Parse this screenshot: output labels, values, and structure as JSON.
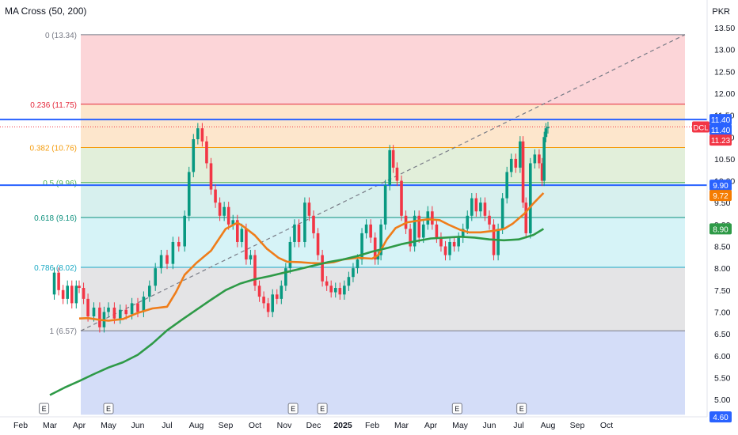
{
  "indicator": {
    "title": "MA Cross (50, 200)"
  },
  "currency": "PKR",
  "chart_data": {
    "type": "line",
    "price_axis": {
      "ticks": [
        "13.50",
        "13.00",
        "12.50",
        "12.00",
        "11.50",
        "11.00",
        "10.50",
        "10.00",
        "9.50",
        "9.00",
        "8.50",
        "8.00",
        "7.50",
        "7.00",
        "6.50",
        "6.00",
        "5.50",
        "5.00"
      ],
      "range": [
        4.6,
        13.6
      ]
    },
    "time_axis": {
      "ticks": [
        "Feb",
        "Mar",
        "Apr",
        "May",
        "Jun",
        "Jul",
        "Aug",
        "Sep",
        "Oct",
        "Nov",
        "Dec",
        "2025",
        "Feb",
        "Mar",
        "Apr",
        "May",
        "Jun",
        "Jul",
        "Aug",
        "Sep",
        "Oct"
      ]
    },
    "fib_levels": [
      {
        "label": "0 (13.34)",
        "value": 13.34,
        "line": "#787b86",
        "fill": "#fcd5d8"
      },
      {
        "label": "0.236 (11.75)",
        "value": 11.75,
        "line": "#e4273a",
        "fill": "#fde6cc"
      },
      {
        "label": "0.382 (10.76)",
        "value": 10.76,
        "line": "#f59d0f",
        "fill": "#e2efda"
      },
      {
        "label": "0.5 (9.96)",
        "value": 9.96,
        "line": "#4caf50",
        "fill": "#d7f0ee"
      },
      {
        "label": "0.618 (9.16)",
        "value": 9.16,
        "line": "#0b8f7c",
        "fill": "#d6f3f7"
      },
      {
        "label": "0.786 (8.02)",
        "value": 8.02,
        "line": "#1ba9c4",
        "fill": "#e4e4e6"
      },
      {
        "label": "1 (6.57)",
        "value": 6.57,
        "line": "#787b86",
        "fill": "#d4ddf8"
      }
    ],
    "horizontal_lines": [
      11.4,
      9.9
    ],
    "last_price": 11.23,
    "symbol": "DCL",
    "axis_labels": [
      {
        "text": "11.40",
        "value": 11.4,
        "color": "#2962ff"
      },
      {
        "text": "11.40",
        "value": 11.4,
        "color": "#2962ff"
      },
      {
        "text": "11.23",
        "value": 11.23,
        "color": "#f23645"
      },
      {
        "text": "9.90",
        "value": 9.9,
        "color": "#2962ff"
      },
      {
        "text": "9.72",
        "value": 9.72,
        "color": "#f57c00"
      },
      {
        "text": "8.90",
        "value": 8.9,
        "color": "#2e9a47"
      },
      {
        "text": "4.60",
        "value": 4.6,
        "color": "#2962ff"
      }
    ],
    "earnings_marker": "E",
    "earnings_count": 6,
    "series": [
      {
        "id": "ma50",
        "color": "#ef7d1a",
        "points": [
          [
            0,
            6.85
          ],
          [
            0.3,
            6.86
          ],
          [
            0.7,
            6.82
          ],
          [
            1,
            6.8
          ],
          [
            1.5,
            6.84
          ],
          [
            2,
            6.98
          ],
          [
            2.5,
            7.08
          ],
          [
            3,
            7.12
          ],
          [
            3.3,
            7.45
          ],
          [
            3.6,
            7.85
          ],
          [
            4,
            8.12
          ],
          [
            4.5,
            8.4
          ],
          [
            5,
            8.9
          ],
          [
            5.4,
            9.04
          ],
          [
            5.6,
            8.96
          ],
          [
            6,
            8.75
          ],
          [
            6.4,
            8.45
          ],
          [
            6.8,
            8.24
          ],
          [
            7.1,
            8.15
          ],
          [
            7.5,
            8.14
          ],
          [
            7.9,
            8.12
          ],
          [
            8.3,
            8.11
          ],
          [
            8.7,
            8.14
          ],
          [
            9,
            8.2
          ],
          [
            9.5,
            8.24
          ],
          [
            10,
            8.22
          ],
          [
            10.2,
            8.3
          ],
          [
            10.5,
            8.66
          ],
          [
            10.8,
            8.92
          ],
          [
            11.2,
            9.05
          ],
          [
            11.5,
            9.08
          ],
          [
            11.9,
            9.12
          ],
          [
            12.3,
            9.1
          ],
          [
            12.6,
            9.0
          ],
          [
            13,
            8.88
          ],
          [
            13.3,
            8.82
          ],
          [
            13.7,
            8.82
          ],
          [
            14.1,
            8.85
          ],
          [
            14.5,
            8.9
          ],
          [
            14.8,
            9.02
          ],
          [
            15.2,
            9.25
          ],
          [
            15.5,
            9.48
          ],
          [
            15.85,
            9.72
          ]
        ]
      },
      {
        "id": "ma200",
        "color": "#2e9a47",
        "points": [
          [
            -1,
            5.1
          ],
          [
            -0.5,
            5.27
          ],
          [
            0,
            5.42
          ],
          [
            0.5,
            5.58
          ],
          [
            1,
            5.73
          ],
          [
            1.5,
            5.85
          ],
          [
            2,
            6.02
          ],
          [
            2.5,
            6.28
          ],
          [
            3,
            6.58
          ],
          [
            3.5,
            6.82
          ],
          [
            4,
            7.05
          ],
          [
            4.5,
            7.28
          ],
          [
            5,
            7.5
          ],
          [
            5.5,
            7.65
          ],
          [
            6,
            7.75
          ],
          [
            6.5,
            7.82
          ],
          [
            7,
            7.9
          ],
          [
            7.5,
            7.98
          ],
          [
            8,
            8.06
          ],
          [
            8.5,
            8.14
          ],
          [
            9,
            8.2
          ],
          [
            9.5,
            8.28
          ],
          [
            10,
            8.38
          ],
          [
            10.5,
            8.46
          ],
          [
            11,
            8.55
          ],
          [
            11.5,
            8.62
          ],
          [
            12,
            8.68
          ],
          [
            12.5,
            8.7
          ],
          [
            13,
            8.72
          ],
          [
            13.5,
            8.7
          ],
          [
            14,
            8.66
          ],
          [
            14.5,
            8.64
          ],
          [
            15,
            8.66
          ],
          [
            15.5,
            8.76
          ],
          [
            15.85,
            8.9
          ]
        ]
      }
    ],
    "price_path": [
      [
        -1,
        7.4
      ],
      [
        -0.85,
        7.9
      ],
      [
        -0.7,
        7.5
      ],
      [
        -0.55,
        7.3
      ],
      [
        -0.4,
        7.6
      ],
      [
        -0.25,
        7.2
      ],
      [
        -0.1,
        7.6
      ],
      [
        0,
        7.55
      ],
      [
        0.15,
        7.3
      ],
      [
        0.3,
        6.9
      ],
      [
        0.5,
        7.1
      ],
      [
        0.7,
        6.65
      ],
      [
        0.85,
        7.0
      ],
      [
        1,
        7.1
      ],
      [
        1.2,
        6.85
      ],
      [
        1.4,
        7.05
      ],
      [
        1.6,
        6.95
      ],
      [
        1.8,
        7.2
      ],
      [
        2,
        7.0
      ],
      [
        2.2,
        7.35
      ],
      [
        2.4,
        7.6
      ],
      [
        2.6,
        8.0
      ],
      [
        2.8,
        8.3
      ],
      [
        3,
        8.1
      ],
      [
        3.2,
        8.6
      ],
      [
        3.4,
        8.5
      ],
      [
        3.6,
        9.2
      ],
      [
        3.75,
        10.2
      ],
      [
        3.9,
        10.95
      ],
      [
        4.05,
        11.2
      ],
      [
        4.2,
        10.9
      ],
      [
        4.35,
        10.4
      ],
      [
        4.5,
        9.8
      ],
      [
        4.65,
        9.5
      ],
      [
        4.8,
        9.2
      ],
      [
        4.95,
        9.4
      ],
      [
        5.1,
        9.0
      ],
      [
        5.25,
        9.1
      ],
      [
        5.4,
        8.6
      ],
      [
        5.55,
        8.9
      ],
      [
        5.7,
        8.2
      ],
      [
        5.85,
        8.3
      ],
      [
        6,
        7.6
      ],
      [
        6.15,
        7.35
      ],
      [
        6.3,
        7.2
      ],
      [
        6.45,
        7.0
      ],
      [
        6.6,
        7.4
      ],
      [
        6.75,
        7.3
      ],
      [
        6.9,
        7.6
      ],
      [
        7.05,
        8.0
      ],
      [
        7.2,
        8.6
      ],
      [
        7.35,
        9.0
      ],
      [
        7.5,
        8.6
      ],
      [
        7.7,
        9.5
      ],
      [
        7.85,
        9.2
      ],
      [
        8,
        8.8
      ],
      [
        8.15,
        8.3
      ],
      [
        8.3,
        7.7
      ],
      [
        8.45,
        7.6
      ],
      [
        8.6,
        7.45
      ],
      [
        8.75,
        7.55
      ],
      [
        8.9,
        7.4
      ],
      [
        9.05,
        7.6
      ],
      [
        9.2,
        7.8
      ],
      [
        9.35,
        8.0
      ],
      [
        9.5,
        8.2
      ],
      [
        9.65,
        8.8
      ],
      [
        9.8,
        9.0
      ],
      [
        9.95,
        8.7
      ],
      [
        10.1,
        8.2
      ],
      [
        10.2,
        8.3
      ],
      [
        10.3,
        9.0
      ],
      [
        10.45,
        9.9
      ],
      [
        10.6,
        10.7
      ],
      [
        10.72,
        10.3
      ],
      [
        10.85,
        10.0
      ],
      [
        11,
        9.2
      ],
      [
        11.15,
        8.9
      ],
      [
        11.3,
        8.5
      ],
      [
        11.45,
        9.2
      ],
      [
        11.6,
        8.7
      ],
      [
        11.75,
        9.0
      ],
      [
        11.9,
        9.3
      ],
      [
        12.05,
        9.0
      ],
      [
        12.2,
        8.7
      ],
      [
        12.35,
        8.5
      ],
      [
        12.5,
        8.3
      ],
      [
        12.65,
        8.6
      ],
      [
        12.8,
        8.5
      ],
      [
        12.95,
        8.7
      ],
      [
        13.1,
        8.9
      ],
      [
        13.25,
        9.2
      ],
      [
        13.4,
        9.6
      ],
      [
        13.55,
        9.3
      ],
      [
        13.7,
        9.5
      ],
      [
        13.85,
        9.2
      ],
      [
        14,
        9.0
      ],
      [
        14.15,
        8.3
      ],
      [
        14.3,
        8.9
      ],
      [
        14.45,
        9.6
      ],
      [
        14.6,
        10.2
      ],
      [
        14.75,
        10.5
      ],
      [
        14.9,
        10.3
      ],
      [
        15.05,
        10.9
      ],
      [
        15.15,
        9.5
      ],
      [
        15.25,
        8.8
      ],
      [
        15.4,
        10.4
      ],
      [
        15.55,
        10.6
      ],
      [
        15.7,
        10.4
      ],
      [
        15.8,
        10.0
      ],
      [
        15.87,
        11.0
      ],
      [
        15.93,
        11.2
      ],
      [
        16,
        11.23
      ]
    ]
  }
}
